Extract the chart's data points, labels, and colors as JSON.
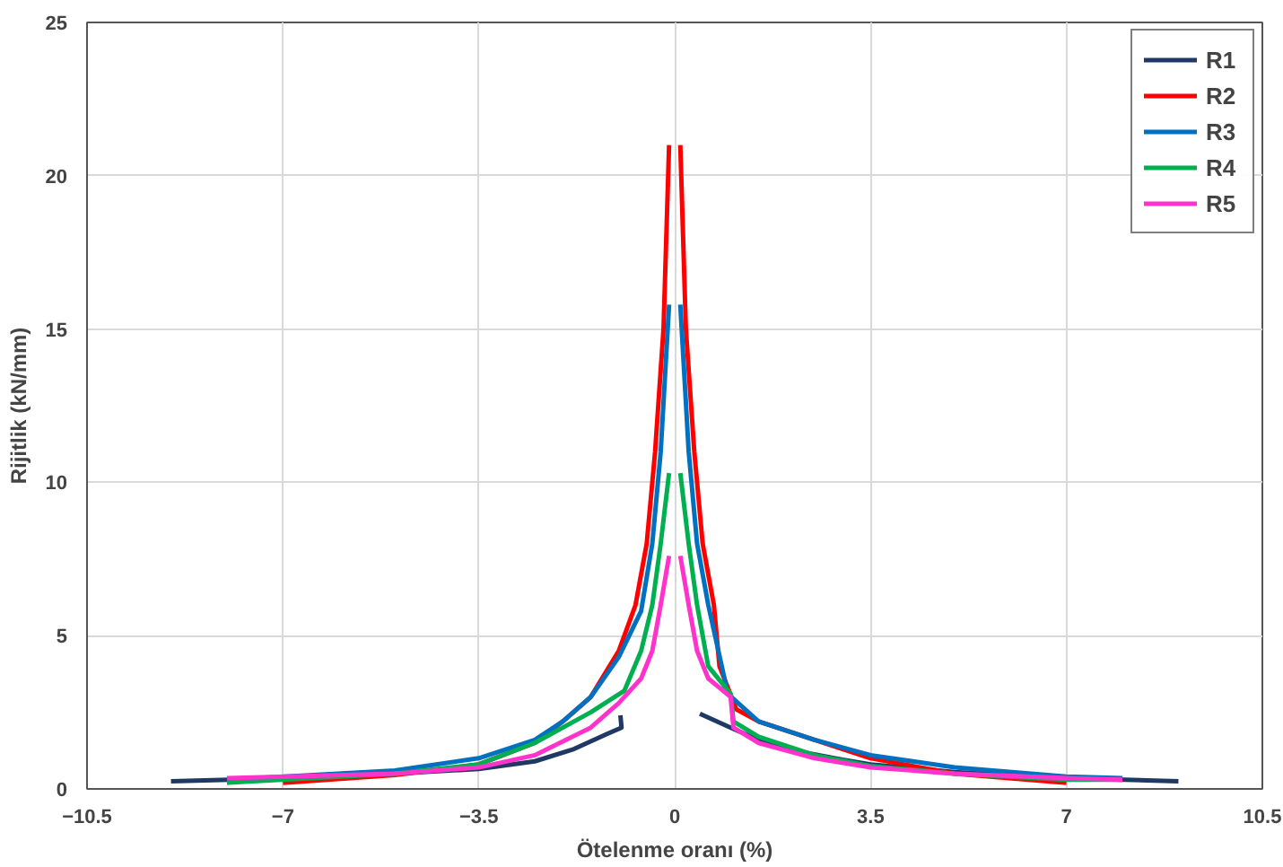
{
  "chart_data": {
    "type": "line",
    "xlabel": "Ötelenme oranı (%)",
    "ylabel": "Rijitlik (kN/mm)",
    "xlim": [
      -10.5,
      10.5
    ],
    "xticks": [
      -10.5,
      -7,
      -3.5,
      0,
      3.5,
      7,
      10.5
    ],
    "ylim": [
      0,
      25
    ],
    "yticks": [
      0,
      5,
      10,
      15,
      20,
      25
    ],
    "grid": true,
    "legend": "top right",
    "marker": "none",
    "line_style": "solid",
    "series": [
      {
        "name": "R1",
        "color": "#1f3864",
        "x": [
          -9,
          -7,
          -5,
          -3.5,
          -2.5,
          -1.8,
          -1.2,
          -0.95,
          -0.97,
          null,
          0.45,
          1,
          1.5,
          2,
          3,
          3.5,
          5,
          7,
          9
        ],
        "values": [
          0.25,
          0.35,
          0.5,
          0.65,
          0.9,
          1.3,
          1.8,
          2.0,
          2.4,
          null,
          2.45,
          2.0,
          1.6,
          1.3,
          0.95,
          0.8,
          0.55,
          0.35,
          0.25
        ]
      },
      {
        "name": "R2",
        "color": "#ff0000",
        "x": [
          -7,
          -5,
          -3.5,
          -2.5,
          -2,
          -1.5,
          -1,
          -0.7,
          -0.5,
          -0.35,
          -0.2,
          -0.1,
          null,
          0.1,
          0.2,
          0.35,
          0.5,
          0.7,
          0.8,
          1.1,
          1.5,
          2.5,
          3.5,
          5,
          7
        ],
        "values": [
          0.2,
          0.45,
          0.8,
          1.5,
          2.2,
          3.0,
          4.5,
          6,
          8,
          11,
          15,
          21,
          null,
          21,
          15,
          11,
          8,
          6,
          4.0,
          2.6,
          2.2,
          1.6,
          1.0,
          0.5,
          0.2
        ]
      },
      {
        "name": "R3",
        "color": "#0070c0",
        "x": [
          -8,
          -5,
          -3.5,
          -2.5,
          -2,
          -1.5,
          -1,
          -0.6,
          -0.4,
          -0.25,
          -0.1,
          null,
          0.1,
          0.25,
          0.4,
          0.6,
          0.95,
          1.5,
          2.5,
          3.5,
          5,
          7,
          8
        ],
        "values": [
          0.3,
          0.6,
          1.0,
          1.6,
          2.2,
          3.0,
          4.3,
          5.8,
          8,
          11,
          15.8,
          null,
          15.8,
          11,
          8,
          6,
          3.1,
          2.2,
          1.6,
          1.1,
          0.7,
          0.4,
          0.35
        ]
      },
      {
        "name": "R4",
        "color": "#00b050",
        "x": [
          -8,
          -5,
          -3.5,
          -2.5,
          -1.5,
          -0.9,
          -0.6,
          -0.4,
          -0.25,
          -0.1,
          null,
          0.1,
          0.25,
          0.4,
          0.6,
          1.0,
          1.05,
          1.5,
          2.5,
          3.5,
          5,
          7,
          8
        ],
        "values": [
          0.2,
          0.5,
          0.8,
          1.5,
          2.5,
          3.2,
          4.5,
          6,
          8,
          10.3,
          null,
          10.3,
          8,
          6,
          4.0,
          3.1,
          2.2,
          1.7,
          1.1,
          0.75,
          0.5,
          0.3,
          0.3
        ]
      },
      {
        "name": "R5",
        "color": "#ff33cc",
        "x": [
          -8,
          -5,
          -3.5,
          -2.5,
          -1.5,
          -1,
          -0.6,
          -0.4,
          -0.25,
          -0.1,
          null,
          0.1,
          0.25,
          0.4,
          0.6,
          1.0,
          1.05,
          1.5,
          2.5,
          3.5,
          5,
          7,
          8
        ],
        "values": [
          0.35,
          0.5,
          0.7,
          1.1,
          2.0,
          2.8,
          3.6,
          4.5,
          6,
          7.6,
          null,
          7.6,
          6,
          4.5,
          3.6,
          3.0,
          2.0,
          1.5,
          1.0,
          0.7,
          0.5,
          0.35,
          0.3
        ]
      }
    ]
  }
}
